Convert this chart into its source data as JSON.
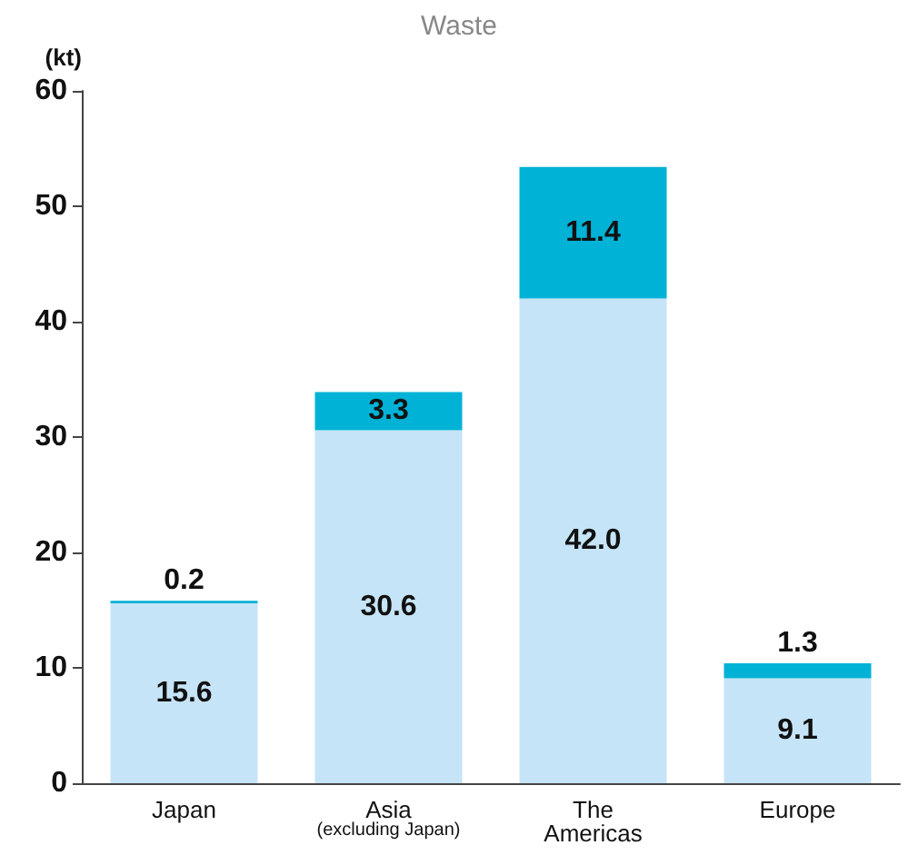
{
  "chart_data": {
    "type": "bar",
    "title": "Waste",
    "ylabel": "(kt)",
    "categories": [
      "Japan",
      "Asia\n(excluding Japan)",
      "The\nAmericas",
      "Europe"
    ],
    "stacked": true,
    "series": [
      {
        "color": "#c6e4f7",
        "values": [
          15.6,
          30.6,
          42.0,
          9.1
        ],
        "value_labels": [
          "15.6",
          "30.6",
          "42.0",
          "9.1"
        ]
      },
      {
        "color": "#00b2d6",
        "values": [
          0.2,
          3.3,
          11.4,
          1.3
        ],
        "value_labels": [
          "0.2",
          "3.3",
          "11.4",
          "1.3"
        ]
      }
    ],
    "ylim": [
      0,
      60
    ],
    "yticks": [
      0,
      10,
      20,
      30,
      40,
      50,
      60
    ],
    "grid": false
  }
}
